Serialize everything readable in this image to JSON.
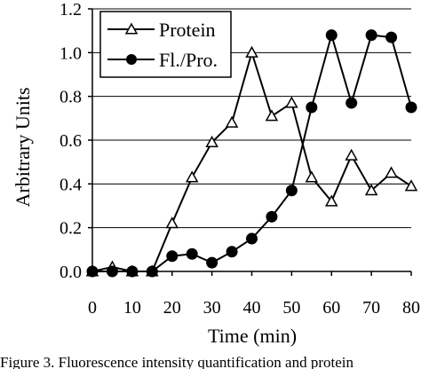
{
  "chart_data": {
    "type": "line",
    "xlabel": "Time (min)",
    "ylabel": "Arbitrary Units",
    "xlim": [
      0,
      80
    ],
    "ylim": [
      0.0,
      1.2
    ],
    "xticks": [
      "0",
      "10",
      "20",
      "30",
      "40",
      "50",
      "60",
      "70",
      "80"
    ],
    "yticks": [
      "0.0",
      "0.2",
      "0.4",
      "0.6",
      "0.8",
      "1.0",
      "1.2"
    ],
    "grid": "horizontal",
    "legend_position": "top-left",
    "series": [
      {
        "name": "Protein",
        "marker": "open-triangle",
        "x": [
          0,
          5,
          10,
          15,
          20,
          25,
          30,
          35,
          40,
          45,
          50,
          55,
          60,
          65,
          70,
          75,
          80
        ],
        "y": [
          0.0,
          0.02,
          0.0,
          0.0,
          0.22,
          0.43,
          0.59,
          0.68,
          1.0,
          0.71,
          0.77,
          0.43,
          0.32,
          0.53,
          0.37,
          0.45,
          0.39
        ]
      },
      {
        "name": "Fl./Pro.",
        "marker": "filled-circle",
        "x": [
          0,
          5,
          10,
          15,
          20,
          25,
          30,
          35,
          40,
          45,
          50,
          55,
          60,
          65,
          70,
          75,
          80
        ],
        "y": [
          0.0,
          0.0,
          0.0,
          0.0,
          0.07,
          0.08,
          0.04,
          0.09,
          0.15,
          0.25,
          0.37,
          0.75,
          1.08,
          0.77,
          1.08,
          1.07,
          0.75
        ]
      }
    ]
  },
  "caption": "Figure 3. Fluorescence intensity quantification and protein"
}
